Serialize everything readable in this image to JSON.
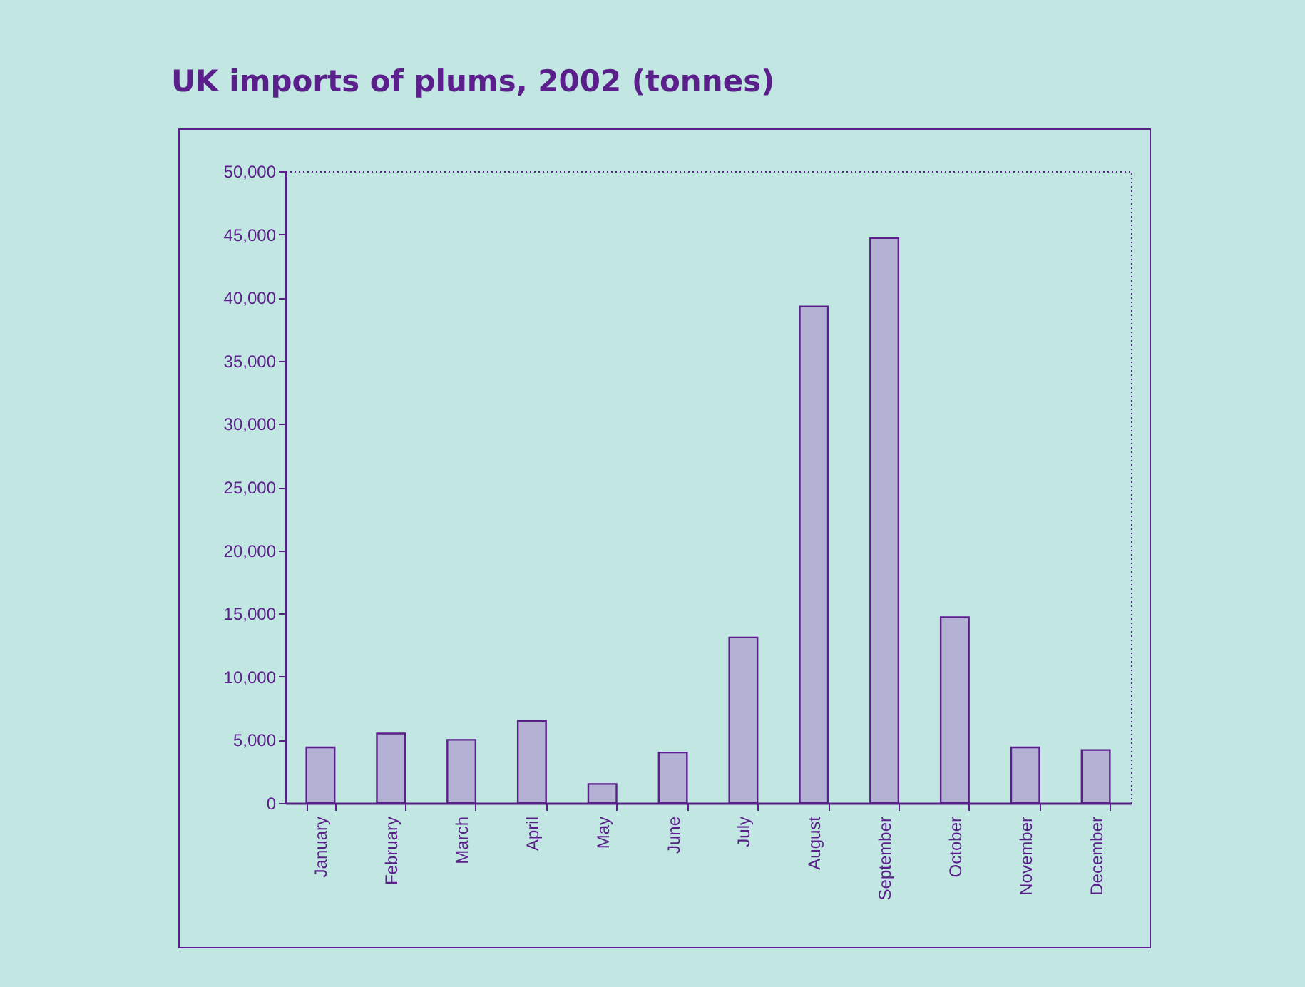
{
  "chart_data": {
    "type": "bar",
    "title": "UK imports of plums, 2002 (tonnes)",
    "categories": [
      "January",
      "February",
      "March",
      "April",
      "May",
      "June",
      "July",
      "August",
      "September",
      "October",
      "November",
      "December"
    ],
    "values": [
      4400,
      5500,
      5000,
      6500,
      1500,
      4000,
      13100,
      39300,
      44700,
      14700,
      4400,
      4200
    ],
    "color": "#b4b2d4",
    "ylim": [
      0,
      50000
    ],
    "yticks": [
      0,
      {
        "value": 5000,
        "label": "5,000"
      },
      {
        "value": 10000,
        "label": "10,000"
      },
      {
        "value": 15000,
        "label": "15,000"
      },
      {
        "value": 20000,
        "label": "20,000"
      },
      {
        "value": 25000,
        "label": "25,000"
      },
      {
        "value": 30000,
        "label": "30,000"
      },
      {
        "value": 35000,
        "label": "35,000"
      },
      {
        "value": 40000,
        "label": "40,000"
      },
      {
        "value": 45000,
        "label": "45,000"
      },
      {
        "value": 50000,
        "label": "50,000"
      }
    ]
  }
}
